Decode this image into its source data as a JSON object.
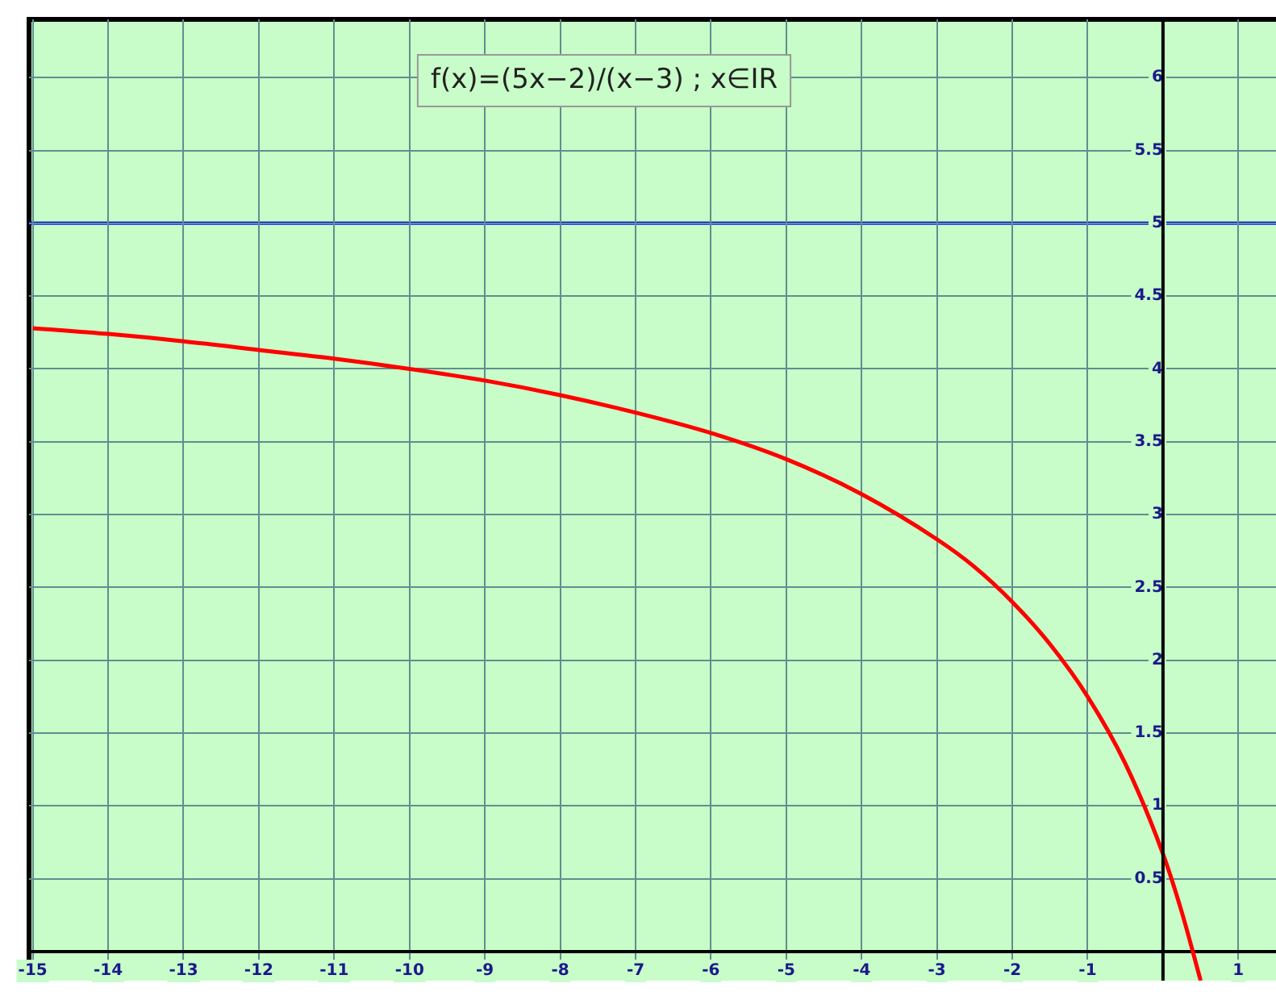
{
  "chart_data": {
    "type": "line",
    "annotations": [
      "f(x)=(5x−2)/(x−3) ; x∈IR"
    ],
    "x": [
      -15,
      -14,
      -13,
      -12,
      -11,
      -10,
      -9,
      -8,
      -7,
      -6,
      -5,
      -4,
      -3,
      -2.5,
      -2,
      -1.5,
      -1,
      -0.5,
      0,
      0.25,
      0.5
    ],
    "series": [
      {
        "color": "#ff0000",
        "values": [
          4.28,
          4.24,
          4.19,
          4.13,
          4.07,
          4.0,
          3.92,
          3.82,
          3.7,
          3.56,
          3.38,
          3.14,
          2.83,
          2.64,
          2.4,
          2.11,
          1.75,
          1.29,
          0.67,
          0.27,
          -0.2
        ]
      }
    ],
    "xlim": [
      -15.05,
      1.5
    ],
    "ylim": [
      -0.2,
      6.4
    ],
    "xticks": [
      -15,
      -14,
      -13,
      -12,
      -11,
      -10,
      -9,
      -8,
      -7,
      -6,
      -5,
      -4,
      -3,
      -2,
      -1,
      1
    ],
    "yticks": [
      0.5,
      1,
      1.5,
      2,
      2.5,
      3,
      3.5,
      4,
      4.5,
      5,
      5.5,
      6
    ],
    "ref_lines": [
      {
        "axis": "y",
        "value": 5,
        "color": "#0000ff"
      }
    ],
    "grid": true,
    "legend": false,
    "marker": "none",
    "line_style": "solid"
  }
}
